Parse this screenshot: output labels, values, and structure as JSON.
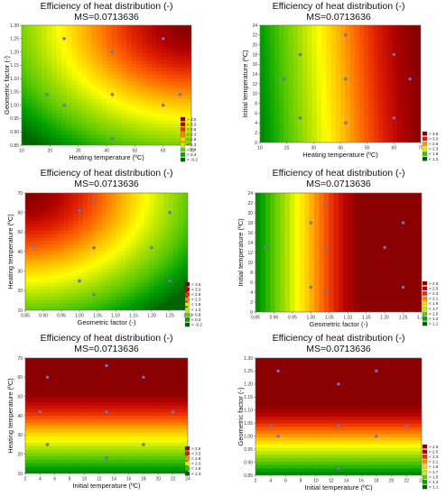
{
  "colors": {
    "scale": [
      "#006400",
      "#00a000",
      "#55c800",
      "#a8e000",
      "#ffff00",
      "#ffb800",
      "#ff6400",
      "#e02000",
      "#b00000",
      "#8b0000"
    ],
    "points": "#7a78c8"
  },
  "chart_data": [
    {
      "type": "heatmap",
      "title": "Efficiency of heat distribution (-)",
      "subtitle": "MS=0.0713636",
      "xlabel": "Heating temperature (ºC)",
      "ylabel": "Geometric factor (-)",
      "xlim": [
        10,
        70
      ],
      "ylim": [
        0.85,
        1.3
      ],
      "xticks": [
        "10",
        "20",
        "30",
        "40",
        "50",
        "60",
        "70"
      ],
      "yticks": [
        "0.85",
        "0.90",
        "0.95",
        "1.00",
        "1.05",
        "1.10",
        "1.15",
        "1.20",
        "1.25",
        "1.30"
      ],
      "legend": [
        "> 3.5",
        "< 3.3",
        "< 2.8",
        "< 2.3",
        "< 1.8",
        "< 1.3",
        "< 0.8",
        "< 0.3",
        "< -0.2"
      ],
      "points": [
        [
          25,
          1.25
        ],
        [
          42,
          1.2
        ],
        [
          60,
          1.25
        ],
        [
          19,
          1.04
        ],
        [
          42,
          1.04
        ],
        [
          66,
          1.04
        ],
        [
          25,
          1.0
        ],
        [
          60,
          1.0
        ],
        [
          42,
          0.875
        ]
      ]
    },
    {
      "type": "heatmap",
      "title": "Efficiency of heat distribution (-)",
      "subtitle": "MS=0.0713636",
      "xlabel": "Heating temperature (ºC)",
      "ylabel": "Initial temperature (ºC)",
      "xlim": [
        10,
        70
      ],
      "ylim": [
        0,
        24
      ],
      "xticks": [
        "10",
        "20",
        "30",
        "40",
        "50",
        "60",
        "70"
      ],
      "yticks": [
        "0",
        "2",
        "4",
        "6",
        "8",
        "10",
        "12",
        "14",
        "16",
        "18",
        "20",
        "22",
        "24"
      ],
      "legend": [
        "> 3.5",
        "< 3.3",
        "< 2.8",
        "< 2.3",
        "< 1.8",
        "< 1.3"
      ],
      "points": [
        [
          42,
          22
        ],
        [
          25,
          18
        ],
        [
          60,
          18
        ],
        [
          19,
          13
        ],
        [
          42,
          13
        ],
        [
          66,
          13
        ],
        [
          25,
          5
        ],
        [
          60,
          5
        ],
        [
          42,
          4
        ]
      ]
    },
    {
      "type": "heatmap",
      "title": "Efficiency of heat distribution (-)",
      "subtitle": "MS=0.0713636",
      "xlabel": "Geometric factor (-)",
      "ylabel": "Heating temperature (ºC)",
      "xlim": [
        0.85,
        1.3
      ],
      "ylim": [
        10,
        70
      ],
      "xticks": [
        "0.85",
        "0.90",
        "0.95",
        "1.00",
        "1.05",
        "1.10",
        "1.15",
        "1.20",
        "1.25",
        "1.30"
      ],
      "yticks": [
        "10",
        "20",
        "30",
        "40",
        "50",
        "60",
        "70"
      ],
      "legend": [
        "> 3.5",
        "< 3.3",
        "< 2.8",
        "< 2.3",
        "< 1.8",
        "< 1.3",
        "< 0.8",
        "< 0.3",
        "< -0.2"
      ],
      "points": [
        [
          1.0,
          61
        ],
        [
          1.04,
          66
        ],
        [
          1.25,
          60
        ],
        [
          0.875,
          43
        ],
        [
          1.04,
          42
        ],
        [
          1.2,
          42
        ],
        [
          1.0,
          25
        ],
        [
          1.25,
          25
        ],
        [
          1.04,
          18
        ]
      ]
    },
    {
      "type": "heatmap",
      "title": "Efficiency of heat distribution (-)",
      "subtitle": "MS=0.0713636",
      "xlabel": "Geometric factor (-)",
      "ylabel": "Initial temperature (ºC)",
      "xlim": [
        0.85,
        1.3
      ],
      "ylim": [
        0,
        24
      ],
      "xticks": [
        "0.85",
        "0.90",
        "0.95",
        "1.00",
        "1.05",
        "1.10",
        "1.15",
        "1.20",
        "1.25",
        "1.30"
      ],
      "yticks": [
        "0",
        "2",
        "4",
        "6",
        "8",
        "10",
        "12",
        "14",
        "16",
        "18",
        "20",
        "22",
        "24"
      ],
      "legend": [
        "> 2.6",
        "< 2.5",
        "< 2.3",
        "< 2.1",
        "< 1.9",
        "< 1.7",
        "< 1.5",
        "< 1.3",
        "< 1.1"
      ],
      "points": [
        [
          1.04,
          22
        ],
        [
          1.0,
          18
        ],
        [
          1.25,
          18
        ],
        [
          0.875,
          13
        ],
        [
          1.04,
          13
        ],
        [
          1.2,
          13
        ],
        [
          1.0,
          5
        ],
        [
          1.25,
          5
        ],
        [
          1.04,
          4
        ]
      ]
    },
    {
      "type": "heatmap",
      "title": "Efficiency of heat distribution (-)",
      "subtitle": "MS=0.0713636",
      "xlabel": "Initial temperature (ºC)",
      "ylabel": "Heating temperature (ºC)",
      "xlim": [
        2,
        24
      ],
      "ylim": [
        10,
        70
      ],
      "xticks": [
        "2",
        "4",
        "6",
        "8",
        "10",
        "12",
        "14",
        "16",
        "18",
        "20",
        "22",
        "24"
      ],
      "yticks": [
        "10",
        "20",
        "30",
        "40",
        "50",
        "60",
        "70"
      ],
      "legend": [
        "> 3.5",
        "< 3.3",
        "< 2.8",
        "< 2.3",
        "< 1.8",
        "< 1.3"
      ],
      "points": [
        [
          5,
          60
        ],
        [
          13,
          66
        ],
        [
          18,
          60
        ],
        [
          4,
          42
        ],
        [
          13,
          42
        ],
        [
          22,
          42
        ],
        [
          5,
          25
        ],
        [
          18,
          25
        ],
        [
          13,
          18
        ]
      ]
    },
    {
      "type": "heatmap",
      "title": "Efficiency of heat distribution (-)",
      "subtitle": "MS=0.0713636",
      "xlabel": "Initial temperature (ºC)",
      "ylabel": "Geometric factor (-)",
      "xlim": [
        2,
        24
      ],
      "ylim": [
        0.85,
        1.3
      ],
      "xticks": [
        "2",
        "4",
        "6",
        "8",
        "10",
        "12",
        "14",
        "16",
        "18",
        "20",
        "22",
        "24"
      ],
      "yticks": [
        "0.85",
        "0.90",
        "0.95",
        "1.00",
        "1.05",
        "1.10",
        "1.15",
        "1.20",
        "1.25",
        "1.30"
      ],
      "legend": [
        "> 2.6",
        "< 2.5",
        "< 2.3",
        "< 2.1",
        "< 1.9",
        "< 1.7",
        "< 1.5",
        "< 1.3",
        "< 1.1"
      ],
      "points": [
        [
          5,
          1.25
        ],
        [
          13,
          1.2
        ],
        [
          18,
          1.25
        ],
        [
          4,
          1.04
        ],
        [
          13,
          1.04
        ],
        [
          22,
          1.04
        ],
        [
          5,
          1.0
        ],
        [
          18,
          1.0
        ],
        [
          13,
          0.875
        ]
      ]
    }
  ]
}
